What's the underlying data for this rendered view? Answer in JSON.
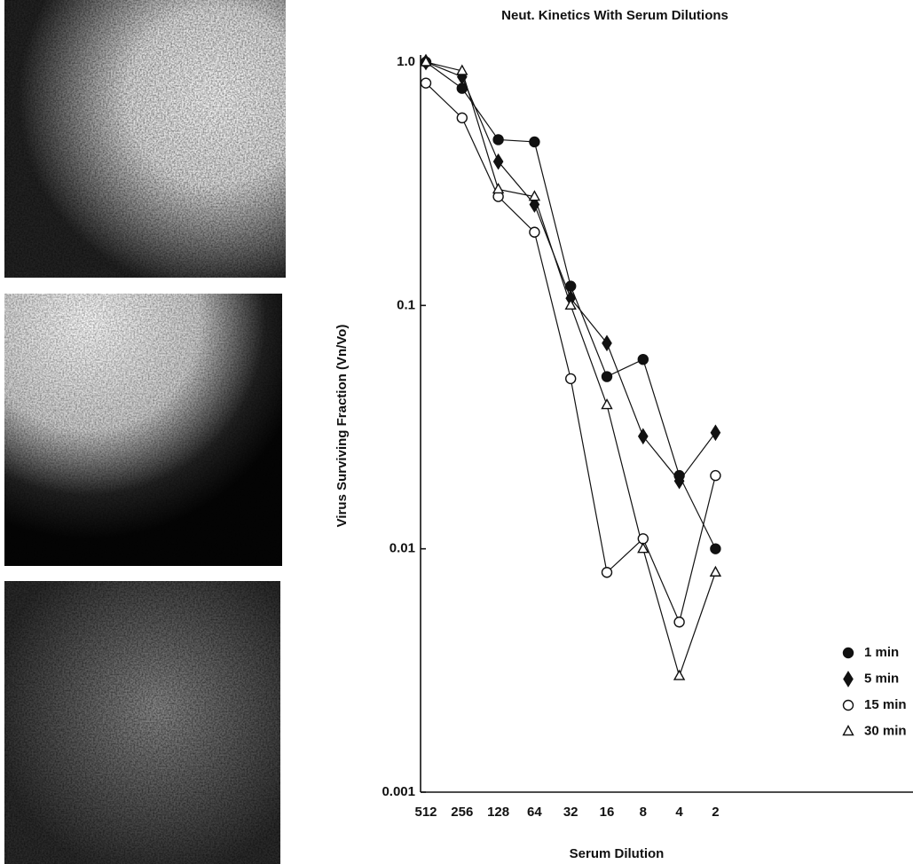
{
  "chart_data": {
    "type": "line",
    "title": "Neut. Kinetics With Serum Dilutions",
    "x_label": "Serum Dilution",
    "y_label": "Virus Surviving Fraction (Vn/Vo)",
    "categories": [
      "512",
      "256",
      "128",
      "64",
      "32",
      "16",
      "8",
      "4",
      "2"
    ],
    "yscale": "log",
    "ylim": [
      0.001,
      1
    ],
    "yticks": [
      {
        "value": 1,
        "label": "1.0"
      },
      0.1,
      0.01,
      0.001
    ],
    "legend": "lower right",
    "series": [
      {
        "name": "1 min",
        "color": "#111111",
        "marker": "circle",
        "filled": true,
        "values": [
          1.0,
          0.78,
          0.48,
          0.47,
          0.12,
          0.051,
          0.06,
          0.02,
          0.01
        ]
      },
      {
        "name": "5 min",
        "color": "#111111",
        "marker": "diamond",
        "filled": true,
        "values": [
          1.0,
          0.87,
          0.39,
          0.26,
          0.107,
          0.07,
          0.029,
          0.019,
          0.03
        ]
      },
      {
        "name": "15 min",
        "color": "#111111",
        "marker": "circle",
        "filled": false,
        "values": [
          0.82,
          0.59,
          0.28,
          0.2,
          0.05,
          0.008,
          0.011,
          0.005,
          0.02
        ]
      },
      {
        "name": "30 min",
        "color": "#111111",
        "marker": "triangle",
        "filled": false,
        "values": [
          1.0,
          0.92,
          0.3,
          0.28,
          0.1,
          0.039,
          0.01,
          0.003,
          0.008
        ]
      }
    ]
  }
}
